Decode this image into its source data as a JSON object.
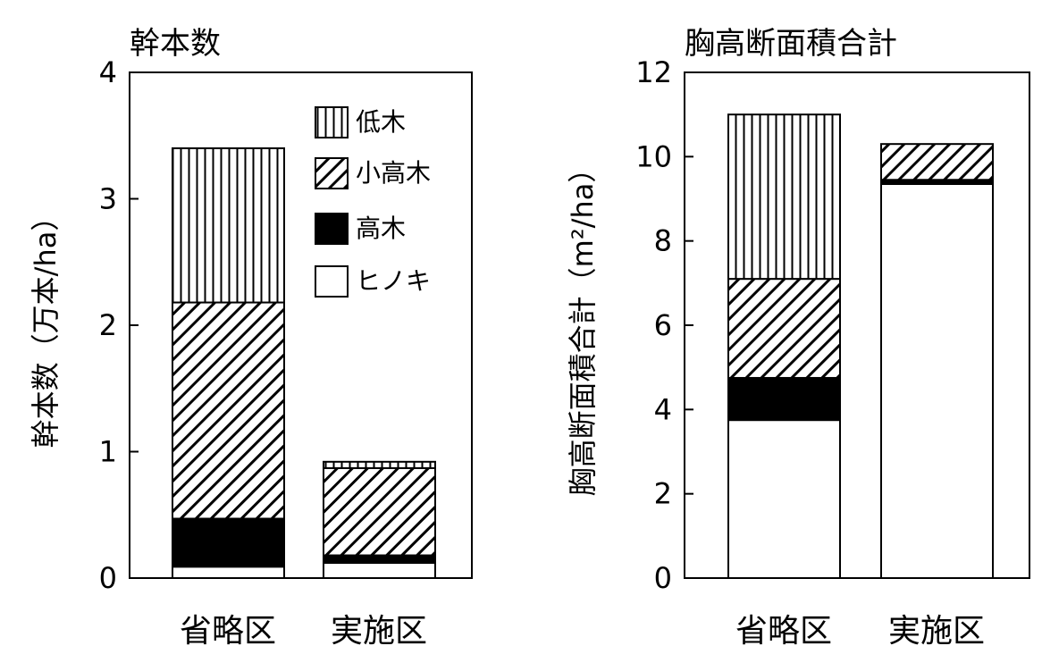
{
  "chart_data": [
    {
      "type": "bar",
      "stacked": true,
      "title": "幹本数",
      "xlabel": "",
      "ylabel": "幹本数（万本/ha）",
      "categories": [
        "省略区",
        "実施区"
      ],
      "ylim": [
        0,
        4
      ],
      "yticks": [
        "0",
        "1",
        "2",
        "3",
        "4"
      ],
      "series": [
        {
          "name": "ヒノキ",
          "pattern": "white",
          "values": [
            0.09,
            0.12
          ]
        },
        {
          "name": "高木",
          "pattern": "black",
          "values": [
            0.38,
            0.06
          ]
        },
        {
          "name": "小高木",
          "pattern": "diagonal",
          "values": [
            1.71,
            0.69
          ]
        },
        {
          "name": "低木",
          "pattern": "vertical",
          "values": [
            1.22,
            0.05
          ]
        }
      ],
      "legend": {
        "placement": "top-right",
        "order": [
          "低木",
          "小高木",
          "高木",
          "ヒノキ"
        ]
      }
    },
    {
      "type": "bar",
      "stacked": true,
      "title": "胸高断面積合計",
      "xlabel": "",
      "ylabel": "胸高断面積合計（m²/ha）",
      "categories": [
        "省略区",
        "実施区"
      ],
      "ylim": [
        0,
        12
      ],
      "yticks": [
        "0",
        "2",
        "4",
        "6",
        "8",
        "10",
        "12"
      ],
      "series": [
        {
          "name": "ヒノキ",
          "pattern": "white",
          "values": [
            3.75,
            9.35
          ]
        },
        {
          "name": "高木",
          "pattern": "black",
          "values": [
            1.0,
            0.1
          ]
        },
        {
          "name": "小高木",
          "pattern": "diagonal",
          "values": [
            2.35,
            0.85
          ]
        },
        {
          "name": "低木",
          "pattern": "vertical",
          "values": [
            3.9,
            0.0
          ]
        }
      ]
    }
  ]
}
